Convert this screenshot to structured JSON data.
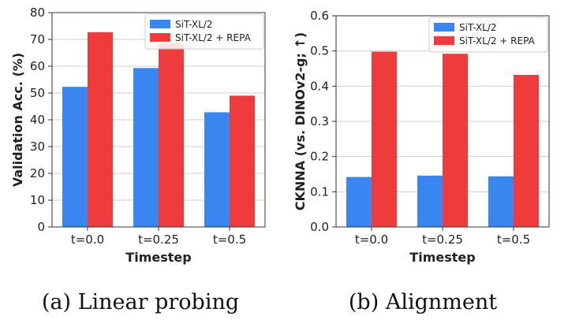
{
  "chart_data": [
    {
      "type": "bar",
      "title": "",
      "caption": "(a) Linear probing",
      "categories": [
        "t=0.0",
        "t=0.25",
        "t=0.5"
      ],
      "series": [
        {
          "name": "SiT-XL/2",
          "color": "#3a86f0",
          "values": [
            52.3,
            59.3,
            42.8
          ]
        },
        {
          "name": "SiT-XL/2 + REPA",
          "color": "#ef3b3b",
          "values": [
            72.7,
            68.5,
            49.0
          ]
        }
      ],
      "xlabel": "Timestep",
      "ylabel": "Validation Acc. (%)",
      "ylim": [
        0,
        80
      ],
      "yticks": [
        0,
        10,
        20,
        30,
        40,
        50,
        60,
        70,
        80
      ],
      "ytick_labels": [
        "0",
        "10",
        "20",
        "30",
        "40",
        "50",
        "60",
        "70",
        "80"
      ],
      "grid": true,
      "legend_position": "top-right"
    },
    {
      "type": "bar",
      "title": "",
      "caption": "(b) Alignment",
      "categories": [
        "t=0.0",
        "t=0.25",
        "t=0.5"
      ],
      "series": [
        {
          "name": "SiT-XL/2",
          "color": "#3a86f0",
          "values": [
            0.142,
            0.146,
            0.144
          ]
        },
        {
          "name": "SiT-XL/2 + REPA",
          "color": "#ef3b3b",
          "values": [
            0.498,
            0.492,
            0.432
          ]
        }
      ],
      "xlabel": "Timestep",
      "ylabel": "CKNNA (vs. DINOv2-g; ↑)",
      "ylim": [
        0,
        0.6
      ],
      "yticks": [
        0,
        0.1,
        0.2,
        0.3,
        0.4,
        0.5,
        0.6
      ],
      "ytick_labels": [
        "0.0",
        "0.1",
        "0.2",
        "0.3",
        "0.4",
        "0.5",
        "0.6"
      ],
      "grid": true,
      "legend_position": "top-right"
    }
  ]
}
